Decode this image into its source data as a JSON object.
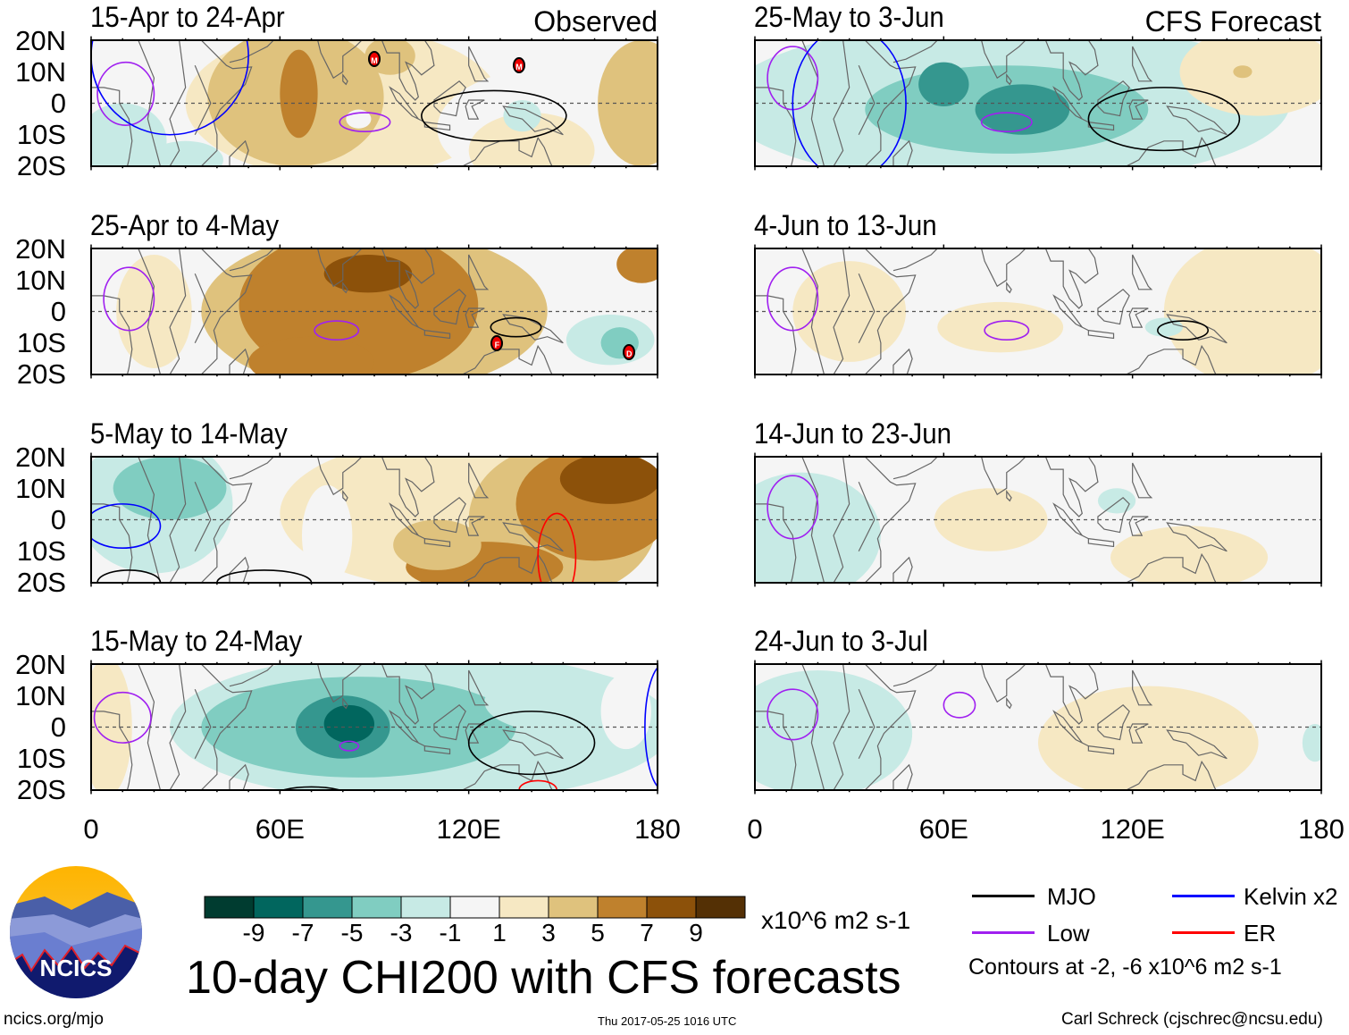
{
  "chart_data": {
    "type": "heatmap",
    "title": "10-day CHI200 with CFS forecasts",
    "variable": "CHI200 (200-hPa velocity potential) anomaly",
    "units": "x10^6 m2 s-1",
    "colorbar": {
      "ticks": [
        "-9",
        "-7",
        "-5",
        "-3",
        "-1",
        "1",
        "3",
        "5",
        "7",
        "9"
      ],
      "colors": [
        "#003c30",
        "#01665e",
        "#35978f",
        "#80cdc1",
        "#c7eae5",
        "#f5f5f5",
        "#f6e8c3",
        "#dfc27d",
        "#bf812d",
        "#8c510a",
        "#543005"
      ]
    },
    "lat_ticks": [
      "20N",
      "10N",
      "0",
      "10S",
      "20S"
    ],
    "lon_ticks": [
      "0",
      "60E",
      "120E",
      "180"
    ],
    "lat_range": [
      -20,
      20
    ],
    "lon_range": [
      0,
      180
    ],
    "columns": [
      {
        "tag": "Observed",
        "panels": [
          {
            "title": "15-Apr to 24-Apr",
            "storms": [
              "M",
              "M"
            ]
          },
          {
            "title": "25-Apr to 4-May",
            "storms": [
              "F",
              "D"
            ]
          },
          {
            "title": "5-May to 14-May",
            "storms": []
          },
          {
            "title": "15-May to 24-May",
            "storms": []
          }
        ]
      },
      {
        "tag": "CFS Forecast",
        "panels": [
          {
            "title": "25-May to 3-Jun",
            "storms": []
          },
          {
            "title": "4-Jun to 13-Jun",
            "storms": []
          },
          {
            "title": "14-Jun to 23-Jun",
            "storms": []
          },
          {
            "title": "24-Jun to 3-Jul",
            "storms": []
          }
        ]
      }
    ],
    "legend": {
      "items": [
        {
          "label": "MJO",
          "color": "#000000"
        },
        {
          "label": "Kelvin x2",
          "color": "#0000ff"
        },
        {
          "label": "Low",
          "color": "#a020f0"
        },
        {
          "label": "ER",
          "color": "#ff0000"
        }
      ],
      "contours_note": "Contours at -2, -6 x10^6 m2 s-1"
    }
  },
  "footer": {
    "logo_text": "NCICS",
    "site": "ncics.org/mjo",
    "timestamp": "Thu 2017-05-25 1016 UTC",
    "credit": "Carl Schreck (cjschrec@ncsu.edu)"
  }
}
